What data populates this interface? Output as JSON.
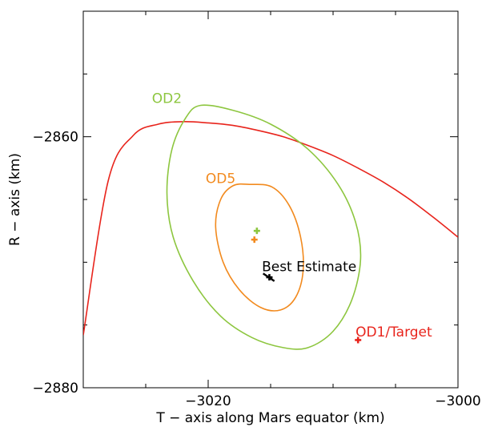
{
  "chart_data": {
    "type": "scatter",
    "xlabel": "T − axis along Mars equator (km)",
    "ylabel": "R − axis (km)",
    "xlim": [
      -3030,
      -3000
    ],
    "ylim": [
      -2880,
      -2850
    ],
    "x_ticks": [
      -3020,
      -3000
    ],
    "x_tick_labels": [
      "−3020",
      "−3000"
    ],
    "y_ticks": [
      -2860,
      -2880
    ],
    "y_tick_labels": [
      "−2860",
      "−2880"
    ],
    "grid": false,
    "ellipses": [
      {
        "name": "OD1/Target",
        "color": "#e8241c",
        "cx": -3008.6,
        "cy": -2876.1,
        "points": [
          [
            -3030.0,
            -2875.8
          ],
          [
            -3028.0,
            -2863.5
          ],
          [
            -3026.0,
            -2859.9
          ],
          [
            -3024.0,
            -2859.0
          ],
          [
            -3022.0,
            -2858.8
          ],
          [
            -3020.0,
            -2858.9
          ],
          [
            -3018.0,
            -2859.1
          ],
          [
            -3016.0,
            -2859.5
          ],
          [
            -3014.0,
            -2860.0
          ],
          [
            -3012.0,
            -2860.7
          ],
          [
            -3010.0,
            -2861.5
          ],
          [
            -3008.0,
            -2862.5
          ],
          [
            -3006.0,
            -2863.6
          ],
          [
            -3004.0,
            -2864.9
          ],
          [
            -3002.0,
            -2866.4
          ],
          [
            -3000.0,
            -2868.0
          ]
        ]
      },
      {
        "name": "OD2",
        "color": "#8dc63f",
        "cx": -3016.5,
        "cy": -2869.5,
        "points": [
          [
            -3020.6,
            -2857.5
          ],
          [
            -3018.0,
            -2857.9
          ],
          [
            -3015.0,
            -2859.0
          ],
          [
            -3012.0,
            -2861.0
          ],
          [
            -3009.6,
            -2863.8
          ],
          [
            -3008.2,
            -2866.8
          ],
          [
            -3007.8,
            -2869.8
          ],
          [
            -3008.5,
            -2873.0
          ],
          [
            -3010.0,
            -2875.5
          ],
          [
            -3012.0,
            -2876.8
          ],
          [
            -3014.0,
            -2876.8
          ],
          [
            -3016.5,
            -2876.0
          ],
          [
            -3019.0,
            -2874.3
          ],
          [
            -3021.2,
            -2871.5
          ],
          [
            -3022.8,
            -2868.0
          ],
          [
            -3023.3,
            -2864.5
          ],
          [
            -3022.9,
            -2861.0
          ],
          [
            -3021.8,
            -2858.5
          ],
          [
            -3020.6,
            -2857.5
          ]
        ]
      },
      {
        "name": "OD5",
        "color": "#f28a1e",
        "cx": -3015.9,
        "cy": -2869.5,
        "points": [
          [
            -3016.7,
            -2863.8
          ],
          [
            -3014.9,
            -2864.0
          ],
          [
            -3013.5,
            -2865.5
          ],
          [
            -3012.6,
            -2868.0
          ],
          [
            -3012.4,
            -2870.7
          ],
          [
            -3013.0,
            -2872.8
          ],
          [
            -3014.2,
            -2873.8
          ],
          [
            -3015.8,
            -2873.6
          ],
          [
            -3017.5,
            -2872.2
          ],
          [
            -3018.8,
            -2870.0
          ],
          [
            -3019.4,
            -2867.2
          ],
          [
            -3019.0,
            -2865.0
          ],
          [
            -3018.0,
            -2863.9
          ],
          [
            -3016.7,
            -2863.8
          ]
        ]
      }
    ],
    "markers": [
      {
        "name": "OD2",
        "color": "#8dc63f",
        "x": -3016.1,
        "y": -2867.5
      },
      {
        "name": "OD5",
        "color": "#f28a1e",
        "x": -3016.3,
        "y": -2868.2
      },
      {
        "name": "Best Estimate",
        "color": "#000000",
        "x": -3015.1,
        "y": -2871.2
      },
      {
        "name": "OD1/Target",
        "color": "#e8241c",
        "x": -3008.0,
        "y": -2876.2
      }
    ],
    "best_estimate_segment": [
      [
        -3015.6,
        -2870.9
      ],
      [
        -3014.7,
        -2871.5
      ]
    ],
    "annotations": [
      {
        "text": "OD2",
        "color": "#8dc63f",
        "x": -3024.5,
        "y": -2857.3
      },
      {
        "text": "OD5",
        "color": "#f28a1e",
        "x": -3020.2,
        "y": -2863.7
      },
      {
        "text": "Best Estimate",
        "color": "#000000",
        "x": -3015.7,
        "y": -2870.7
      },
      {
        "text": "OD1/Target",
        "color": "#e8241c",
        "x": -3008.2,
        "y": -2875.9
      }
    ]
  }
}
